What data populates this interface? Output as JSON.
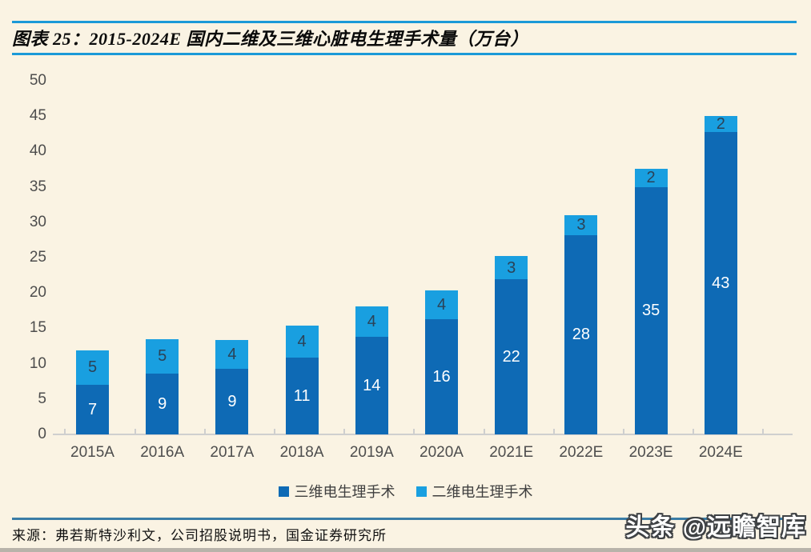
{
  "header": {
    "figure_title": "图表 25：2015-2024E 国内二维及三维心脏电生理手术量（万台）"
  },
  "chart_data": {
    "type": "bar",
    "stacked": true,
    "title": "图表 25：2015-2024E 国内二维及三维心脏电生理手术量（万台）",
    "categories": [
      "2015A",
      "2016A",
      "2017A",
      "2018A",
      "2019A",
      "2020A",
      "2021E",
      "2022E",
      "2023E",
      "2024E"
    ],
    "series": [
      {
        "name": "三维电生理手术",
        "color": "#0e6ab5",
        "label_color": "#ffffff",
        "values": [
          7,
          9,
          9,
          11,
          14,
          16,
          22,
          28,
          35,
          43
        ],
        "values_precise": [
          7.0,
          8.6,
          9.3,
          10.9,
          13.8,
          16.3,
          21.9,
          28.2,
          35.0,
          42.8
        ]
      },
      {
        "name": "二维电生理手术",
        "color": "#199fe0",
        "label_color": "#2b4257",
        "values": [
          5,
          5,
          4,
          4,
          4,
          4,
          3,
          3,
          2,
          2
        ],
        "values_precise": [
          4.9,
          4.9,
          4.1,
          4.5,
          4.3,
          4.1,
          3.3,
          2.8,
          2.6,
          2.2
        ]
      }
    ],
    "xlabel": "",
    "ylabel": "",
    "ylim": [
      0,
      50
    ],
    "ytick_step": 5,
    "grid": false,
    "legend_position": "bottom"
  },
  "footer": {
    "source": "来源：弗若斯特沙利文，公司招股说明书，国金证券研究所",
    "watermark": "头条 @远瞻智库"
  },
  "colors": {
    "background": "#faf3e3",
    "header_rule": "#1b99d7",
    "footer_rule": "#3a7ca6",
    "axis_text": "#4d4d4d",
    "baseline": "#cfcfcf",
    "series_3d": "#0e6ab5",
    "series_2d": "#199fe0"
  }
}
